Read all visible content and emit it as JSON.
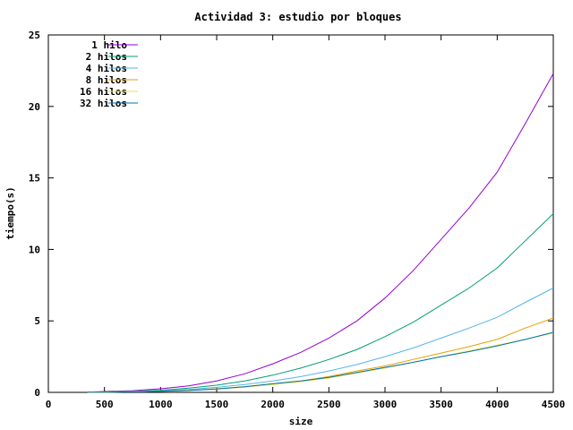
{
  "chart_data": {
    "type": "line",
    "title": "Actividad 3: estudio por bloques",
    "xlabel": "size",
    "ylabel": "tiempo(s)",
    "xlim": [
      0,
      4500
    ],
    "ylim": [
      0,
      25
    ],
    "xticks": [
      0,
      500,
      1000,
      1500,
      2000,
      2500,
      3000,
      3500,
      4000,
      4500
    ],
    "yticks": [
      0,
      5,
      10,
      15,
      20,
      25
    ],
    "grid": false,
    "legend_position": "top-left",
    "series": [
      {
        "name": "1 hilo",
        "color": "#9400d3",
        "x": [
          350,
          500,
          750,
          1000,
          1250,
          1500,
          1750,
          2000,
          2250,
          2500,
          2750,
          3000,
          3250,
          3500,
          3750,
          4000,
          4250,
          4500
        ],
        "y": [
          0.02,
          0.06,
          0.12,
          0.25,
          0.45,
          0.8,
          1.3,
          2.0,
          2.8,
          3.8,
          5.0,
          6.6,
          8.5,
          10.7,
          12.9,
          15.4,
          18.8,
          22.3
        ]
      },
      {
        "name": "2 hilos",
        "color": "#009e73",
        "x": [
          350,
          500,
          750,
          1000,
          1250,
          1500,
          1750,
          2000,
          2250,
          2500,
          2750,
          3000,
          3250,
          3500,
          3750,
          4000,
          4250,
          4500
        ],
        "y": [
          0.02,
          0.04,
          0.08,
          0.15,
          0.3,
          0.5,
          0.8,
          1.2,
          1.7,
          2.3,
          3.0,
          3.9,
          4.9,
          6.1,
          7.3,
          8.7,
          10.6,
          12.5
        ]
      },
      {
        "name": "4 hilos",
        "color": "#56b4e9",
        "x": [
          350,
          500,
          750,
          1000,
          1250,
          1500,
          1750,
          2000,
          2250,
          2500,
          2750,
          3000,
          3250,
          3500,
          3750,
          4000,
          4250,
          4500
        ],
        "y": [
          0.01,
          0.03,
          0.06,
          0.1,
          0.2,
          0.35,
          0.55,
          0.8,
          1.1,
          1.5,
          1.95,
          2.5,
          3.1,
          3.8,
          4.5,
          5.25,
          6.3,
          7.3
        ]
      },
      {
        "name": "8 hilos",
        "color": "#e69f00",
        "x": [
          350,
          500,
          750,
          1000,
          1250,
          1500,
          1750,
          2000,
          2250,
          2500,
          2750,
          3000,
          3250,
          3500,
          3750,
          4000,
          4250,
          4500
        ],
        "y": [
          0.01,
          0.02,
          0.04,
          0.08,
          0.15,
          0.25,
          0.4,
          0.6,
          0.8,
          1.1,
          1.5,
          1.85,
          2.3,
          2.75,
          3.2,
          3.7,
          4.5,
          5.2
        ]
      },
      {
        "name": "16 hilos",
        "color": "#f0e442",
        "x": [
          350,
          500,
          750,
          1000,
          1250,
          1500,
          1750,
          2000,
          2250,
          2500,
          2750,
          3000,
          3250,
          3500,
          3750,
          4000,
          4250,
          4500
        ],
        "y": [
          0.01,
          0.02,
          0.04,
          0.07,
          0.13,
          0.23,
          0.37,
          0.55,
          0.75,
          1.0,
          1.35,
          1.7,
          2.1,
          2.5,
          2.9,
          3.3,
          3.7,
          4.15
        ]
      },
      {
        "name": "32 hilos",
        "color": "#0072b2",
        "x": [
          350,
          500,
          750,
          1000,
          1250,
          1500,
          1750,
          2000,
          2250,
          2500,
          2750,
          3000,
          3250,
          3500,
          3750,
          4000,
          4250,
          4500
        ],
        "y": [
          0.01,
          0.02,
          0.04,
          0.07,
          0.13,
          0.24,
          0.39,
          0.6,
          0.8,
          1.05,
          1.4,
          1.75,
          2.1,
          2.5,
          2.85,
          3.25,
          3.7,
          4.2
        ]
      }
    ]
  }
}
